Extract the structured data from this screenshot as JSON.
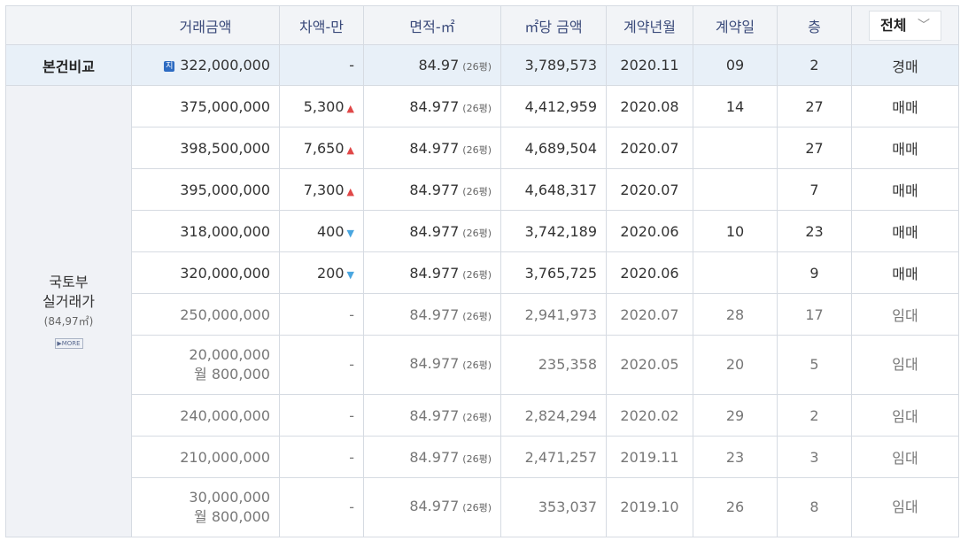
{
  "header": {
    "price": "거래금액",
    "diff": "차액-만",
    "area": "면적-㎡",
    "per_m2": "㎡당 금액",
    "ym": "계약년월",
    "day": "계약일",
    "floor": "층",
    "filter": "전체",
    "filter_icon": "chevron-down-icon"
  },
  "compare": {
    "label": "본건비교",
    "badge": "지",
    "price": "322,000,000",
    "diff": "-",
    "area": "84.97",
    "pyeong": "(26평)",
    "per_m2": "3,789,573",
    "ym": "2020.11",
    "day": "09",
    "floor": "2",
    "type": "경매"
  },
  "side": {
    "line1": "국토부",
    "line2": "실거래가",
    "area": "(84,97㎡)",
    "more": "▶MORE"
  },
  "rows": [
    {
      "price": "375,000,000",
      "price2": "",
      "diff": "5,300",
      "arrow": "▲",
      "area": "84.977",
      "pyeong": "(26평)",
      "per_m2": "4,412,959",
      "ym": "2020.08",
      "day": "14",
      "floor": "27",
      "type": "매매"
    },
    {
      "price": "398,500,000",
      "price2": "",
      "diff": "7,650",
      "arrow": "▲",
      "area": "84.977",
      "pyeong": "(26평)",
      "per_m2": "4,689,504",
      "ym": "2020.07",
      "day": "",
      "floor": "27",
      "type": "매매"
    },
    {
      "price": "395,000,000",
      "price2": "",
      "diff": "7,300",
      "arrow": "▲",
      "area": "84.977",
      "pyeong": "(26평)",
      "per_m2": "4,648,317",
      "ym": "2020.07",
      "day": "",
      "floor": "7",
      "type": "매매"
    },
    {
      "price": "318,000,000",
      "price2": "",
      "diff": "400",
      "arrow": "▼",
      "area": "84.977",
      "pyeong": "(26평)",
      "per_m2": "3,742,189",
      "ym": "2020.06",
      "day": "10",
      "floor": "23",
      "type": "매매"
    },
    {
      "price": "320,000,000",
      "price2": "",
      "diff": "200",
      "arrow": "▼",
      "area": "84.977",
      "pyeong": "(26평)",
      "per_m2": "3,765,725",
      "ym": "2020.06",
      "day": "",
      "floor": "9",
      "type": "매매"
    },
    {
      "price": "250,000,000",
      "price2": "",
      "diff": "-",
      "arrow": "",
      "area": "84.977",
      "pyeong": "(26평)",
      "per_m2": "2,941,973",
      "ym": "2020.07",
      "day": "28",
      "floor": "17",
      "type": "임대"
    },
    {
      "price": "20,000,000",
      "price2": "월 800,000",
      "diff": "-",
      "arrow": "",
      "area": "84.977",
      "pyeong": "(26평)",
      "per_m2": "235,358",
      "ym": "2020.05",
      "day": "20",
      "floor": "5",
      "type": "임대"
    },
    {
      "price": "240,000,000",
      "price2": "",
      "diff": "-",
      "arrow": "",
      "area": "84.977",
      "pyeong": "(26평)",
      "per_m2": "2,824,294",
      "ym": "2020.02",
      "day": "29",
      "floor": "2",
      "type": "임대"
    },
    {
      "price": "210,000,000",
      "price2": "",
      "diff": "-",
      "arrow": "",
      "area": "84.977",
      "pyeong": "(26평)",
      "per_m2": "2,471,257",
      "ym": "2019.11",
      "day": "23",
      "floor": "3",
      "type": "임대"
    },
    {
      "price": "30,000,000",
      "price2": "월 800,000",
      "diff": "-",
      "arrow": "",
      "area": "84.977",
      "pyeong": "(26평)",
      "per_m2": "353,037",
      "ym": "2019.10",
      "day": "26",
      "floor": "8",
      "type": "임대"
    }
  ]
}
